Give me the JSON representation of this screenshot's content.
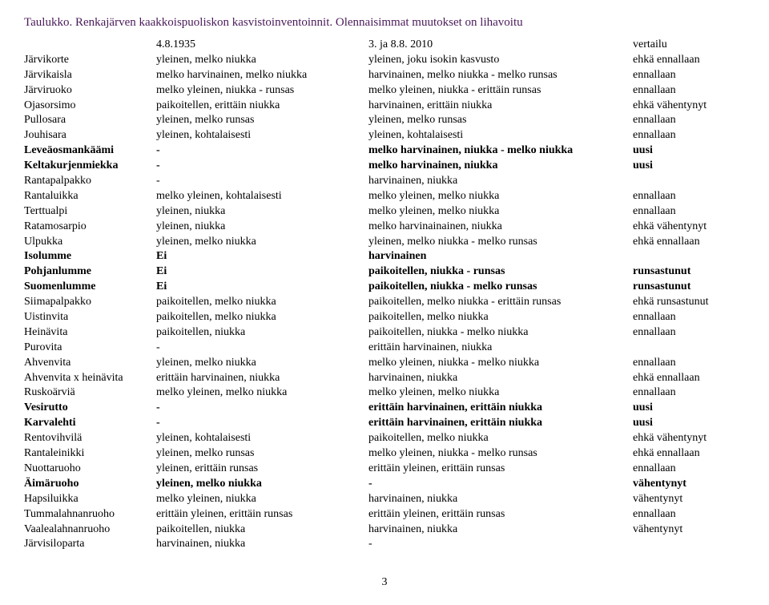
{
  "title": "Taulukko. Renkajärven kaakkoispuoliskon kasvistoinventoinnit. Olennaisimmat muutokset on lihavoitu",
  "header": {
    "c0": "",
    "c1": "4.8.1935",
    "c2": "3. ja 8.8. 2010",
    "c3": "vertailu"
  },
  "rows": [
    {
      "c0": "Järvikorte",
      "c1": "yleinen, melko niukka",
      "c2": "yleinen, joku isokin kasvusto",
      "c3": "ehkä ennallaan",
      "bold": false
    },
    {
      "c0": "Järvikaisla",
      "c1": "melko harvinainen, melko niukka",
      "c2": "harvinainen, melko niukka - melko runsas",
      "c3": "ennallaan",
      "bold": false
    },
    {
      "c0": "Järviruoko",
      "c1": "melko yleinen, niukka - runsas",
      "c2": "melko yleinen, niukka - erittäin runsas",
      "c3": "ennallaan",
      "bold": false
    },
    {
      "c0": "Ojasorsimo",
      "c1": "paikoitellen, erittäin niukka",
      "c2": "harvinainen, erittäin niukka",
      "c3": "ehkä vähentynyt",
      "bold": false
    },
    {
      "c0": "Pullosara",
      "c1": "yleinen, melko runsas",
      "c2": "yleinen, melko runsas",
      "c3": "ennallaan",
      "bold": false
    },
    {
      "c0": "Jouhisara",
      "c1": "yleinen, kohtalaisesti",
      "c2": "yleinen, kohtalaisesti",
      "c3": "ennallaan",
      "bold": false
    },
    {
      "c0": "Leveäosmankäämi",
      "c1": "-",
      "c2": "melko harvinainen, niukka - melko niukka",
      "c3": "uusi",
      "bold": true
    },
    {
      "c0": "Keltakurjenmiekka",
      "c1": "-",
      "c2": "melko harvinainen, niukka",
      "c3": "uusi",
      "bold": true
    },
    {
      "c0": "Rantapalpakko",
      "c1": "-",
      "c2": "harvinainen, niukka",
      "c3": "",
      "bold": false
    },
    {
      "c0": "Rantaluikka",
      "c1": "melko yleinen, kohtalaisesti",
      "c2": "melko yleinen, melko niukka",
      "c3": "ennallaan",
      "bold": false
    },
    {
      "c0": "Terttualpi",
      "c1": "yleinen, niukka",
      "c2": "melko yleinen, melko niukka",
      "c3": "ennallaan",
      "bold": false
    },
    {
      "c0": "Ratamosarpio",
      "c1": "yleinen, niukka",
      "c2": "melko harvinainainen, niukka",
      "c3": "ehkä vähentynyt",
      "bold": false
    },
    {
      "c0": "Ulpukka",
      "c1": "yleinen, melko niukka",
      "c2": "yleinen, melko niukka - melko runsas",
      "c3": "ehkä ennallaan",
      "bold": false
    },
    {
      "c0": "Isolumme",
      "c1": "Ei",
      "c2": "harvinainen",
      "c3": "",
      "bold": true
    },
    {
      "c0": "Pohjanlumme",
      "c1": "Ei",
      "c2": "paikoitellen, niukka - runsas",
      "c3": "runsastunut",
      "bold": true
    },
    {
      "c0": "Suomenlumme",
      "c1": "Ei",
      "c2": "paikoitellen, niukka - melko runsas",
      "c3": "runsastunut",
      "bold": true
    },
    {
      "c0": "Siimapalpakko",
      "c1": "paikoitellen, melko niukka",
      "c2": "paikoitellen, melko niukka - erittäin runsas",
      "c3": "ehkä runsastunut",
      "bold": false
    },
    {
      "c0": "Uistinvita",
      "c1": "paikoitellen, melko niukka",
      "c2": "paikoitellen, melko niukka",
      "c3": "ennallaan",
      "bold": false
    },
    {
      "c0": "Heinävita",
      "c1": "paikoitellen, niukka",
      "c2": "paikoitellen, niukka - melko niukka",
      "c3": "ennallaan",
      "bold": false
    },
    {
      "c0": "Purovita",
      "c1": "-",
      "c2": "erittäin   harvinainen, niukka",
      "c3": "",
      "bold": false
    },
    {
      "c0": "Ahvenvita",
      "c1": "yleinen, melko niukka",
      "c2": "melko yleinen, niukka - melko niukka",
      "c3": "ennallaan",
      "bold": false
    },
    {
      "c0": "Ahvenvita x heinävita",
      "c1": "erittäin harvinainen, niukka",
      "c2": "harvinainen, niukka",
      "c3": "ehkä ennallaan",
      "bold": false
    },
    {
      "c0": "Ruskoärviä",
      "c1": "melko yleinen, melko niukka",
      "c2": "melko yleinen, melko niukka",
      "c3": "ennallaan",
      "bold": false
    },
    {
      "c0": "Vesirutto",
      "c1": "-",
      "c2": "erittäin harvinainen, erittäin niukka",
      "c3": "uusi",
      "bold": true
    },
    {
      "c0": "Karvalehti",
      "c1": "-",
      "c2": "erittäin harvinainen, erittäin niukka",
      "c3": "uusi",
      "bold": true
    },
    {
      "c0": "Rentovihvilä",
      "c1": "yleinen, kohtalaisesti",
      "c2": "paikoitellen, melko niukka",
      "c3": "ehkä vähentynyt",
      "bold": false
    },
    {
      "c0": "Rantaleinikki",
      "c1": "yleinen, melko runsas",
      "c2": "melko yleinen, niukka - melko runsas",
      "c3": "ehkä ennallaan",
      "bold": false
    },
    {
      "c0": "Nuottaruoho",
      "c1": "yleinen, erittäin runsas",
      "c2": "erittäin yleinen, erittäin runsas",
      "c3": "ennallaan",
      "bold": false
    },
    {
      "c0": "Äimäruoho",
      "c1": "yleinen, melko niukka",
      "c2": "-",
      "c3": "vähentynyt",
      "bold": true
    },
    {
      "c0": "Hapsiluikka",
      "c1": "melko yleinen, niukka",
      "c2": "harvinainen, niukka",
      "c3": "vähentynyt",
      "bold": false
    },
    {
      "c0": "Tummalahnanruoho",
      "c1": "erittäin yleinen, erittäin runsas",
      "c2": "erittäin yleinen, erittäin runsas",
      "c3": "ennallaan",
      "bold": false
    },
    {
      "c0": "Vaalealahnanruoho",
      "c1": "paikoitellen, niukka",
      "c2": "harvinainen, niukka",
      "c3": "vähentynyt",
      "bold": false
    },
    {
      "c0": "Järvisiloparta",
      "c1": "harvinainen, niukka",
      "c2": "-",
      "c3": "",
      "bold": false
    }
  ],
  "page_number": "3"
}
